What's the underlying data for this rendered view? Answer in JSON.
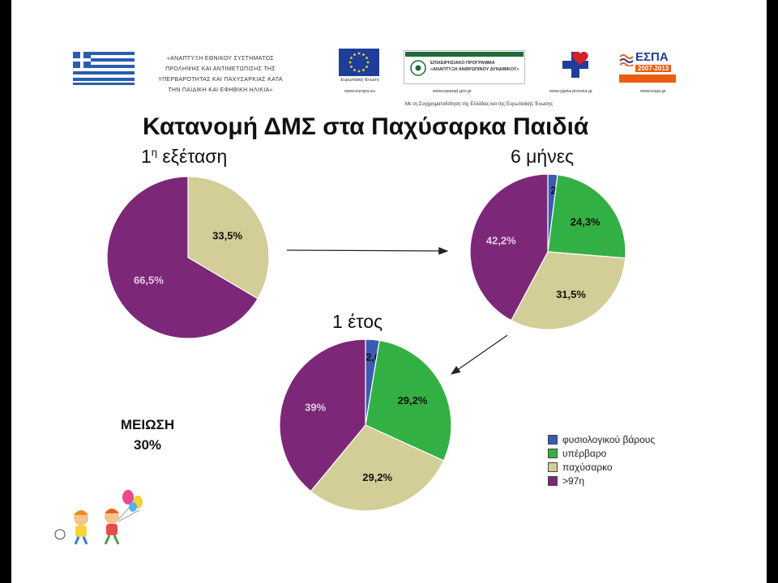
{
  "header": {
    "program_text": [
      "«ΑΝΑΠΤΥΞΗ ΕΘΝΙΚΟΥ ΣΥΣΤΗΜΑΤΟΣ",
      "ΠΡΟΛΗΨΗΣ ΚΑΙ ΑΝΤΙΜΕΤΩΠΙΣΗΣ ΤΗΣ",
      "ΥΠΕΡΒΑΡΟΤΗΤΑΣ ΚΑΙ ΠΑΧΥΣΑΡΚΙΑΣ ΚΑΤΑ",
      "ΤΗΝ ΠΑΙΔΙΚΗ ΚΑΙ ΕΦΗΒΙΚΗ ΗΛΙΚΙΑ»"
    ],
    "eu_caption": "Ευρωπαϊκή Ένωση",
    "eu_url": "www.europa.eu",
    "op_title": "ΕΠΙΧΕΙΡΗΣΙΑΚΟ ΠΡΟΓΡΑΜΜΑ",
    "op_subtitle": "«ΑΝΑΠΤΥΞΗ ΑΝΘΡΩΠΙΝΟΥ ΔΥΝΑΜΙΚΟΥ»",
    "op_url": "www.epanad.gov.gr",
    "ministry_url": "www.ygeia-pronoia.gr",
    "espa_title": "ΕΣΠΑ",
    "espa_years": "2007-2013",
    "espa_url": "www.espa.gr",
    "cofinance_text": "Με τη Συγχρηματοδότηση της Ελλάδας και της Ευρωπαϊκής Ένωσης"
  },
  "title": "Κατανομή ΔΜΣ στα Παχύσαρκα Παιδιά",
  "reduction": {
    "line1": "ΜΕΙΩΣΗ",
    "line2": "30%"
  },
  "colors": {
    "normal": "#3a5bb0",
    "overweight": "#33b043",
    "obese": "#d3cd97",
    "severe": "#7d2779"
  },
  "chart_data": [
    {
      "type": "pie",
      "title": "1η εξέταση",
      "categories": [
        "παχύσαρκο",
        ">97η"
      ],
      "values": [
        33.5,
        66.5
      ],
      "labels": [
        "33,5%",
        "66,5%"
      ]
    },
    {
      "type": "pie",
      "title": "6 μήνες",
      "categories": [
        "φυσιολογικού βάρους",
        "υπέρβαρο",
        "παχύσαρκο",
        ">97η"
      ],
      "values": [
        2,
        24.3,
        31.5,
        42.2
      ],
      "labels": [
        "2%",
        "24,3%",
        "31,5%",
        "42,2%"
      ]
    },
    {
      "type": "pie",
      "title": "1 έτος",
      "categories": [
        "φυσιολογικού βάρους",
        "υπέρβαρο",
        "παχύσαρκο",
        ">97η"
      ],
      "values": [
        2.6,
        29.2,
        29.2,
        39
      ],
      "labels": [
        "2,6%",
        "29,2%",
        "29,2%",
        "39%"
      ]
    }
  ],
  "legend": [
    {
      "label": "φυσιολογικού βάρους",
      "color": "#3a5bb0"
    },
    {
      "label": "υπέρβαρο",
      "color": "#33b043"
    },
    {
      "label": "παχύσαρκο",
      "color": "#d3cd97"
    },
    {
      "label": ">97η",
      "color": "#7d2779"
    }
  ]
}
